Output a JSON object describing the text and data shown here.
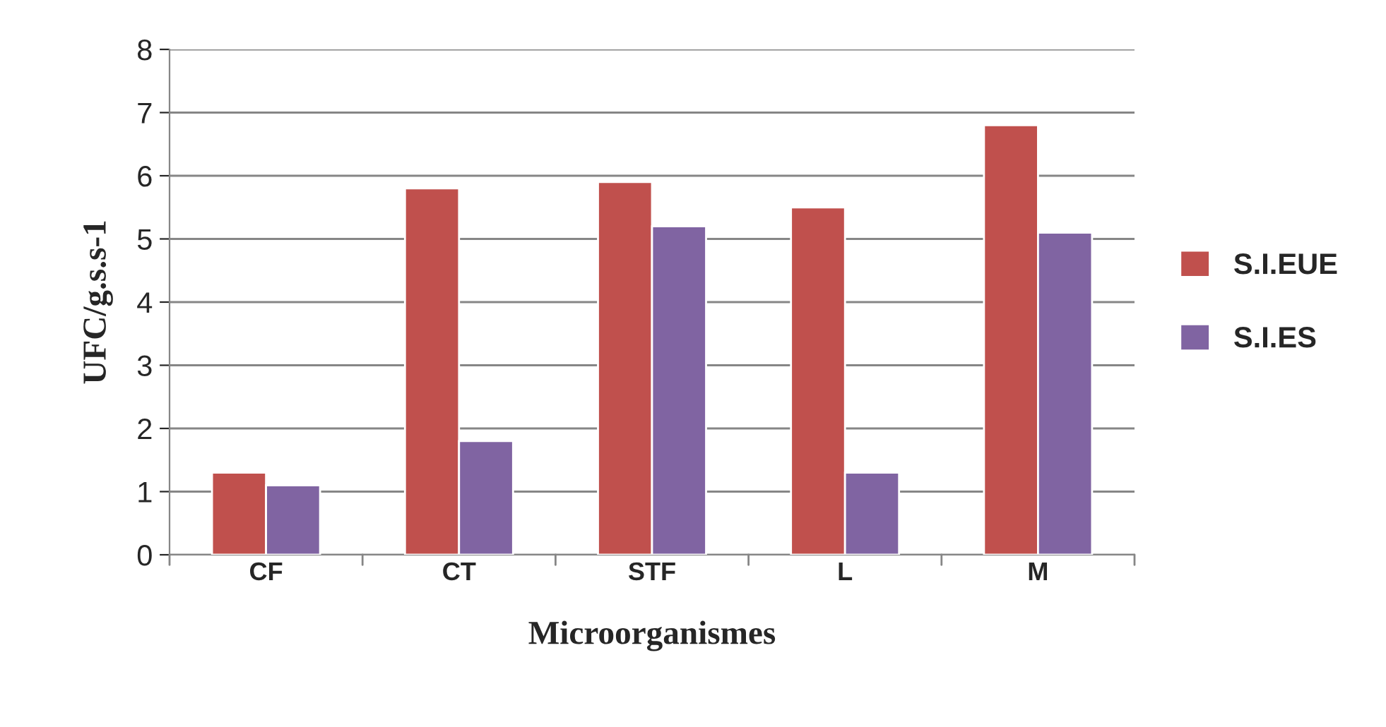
{
  "chart_data": {
    "type": "bar",
    "xlabel": "Microorganismes",
    "ylabel": "UFC/g.s.s-1",
    "categories": [
      "CF",
      "CT",
      "STF",
      "L",
      "M"
    ],
    "series": [
      {
        "name": "S.I.EUE",
        "color": "#c0504d",
        "values": [
          1.3,
          5.8,
          5.9,
          5.5,
          6.8
        ]
      },
      {
        "name": "S.I.ES",
        "color": "#8064a2",
        "values": [
          1.1,
          1.8,
          5.2,
          1.3,
          5.1
        ]
      }
    ],
    "ylim": [
      0,
      8
    ],
    "yticks": [
      0,
      1,
      2,
      3,
      4,
      5,
      6,
      7,
      8
    ],
    "grid": "y",
    "legend": "right"
  }
}
